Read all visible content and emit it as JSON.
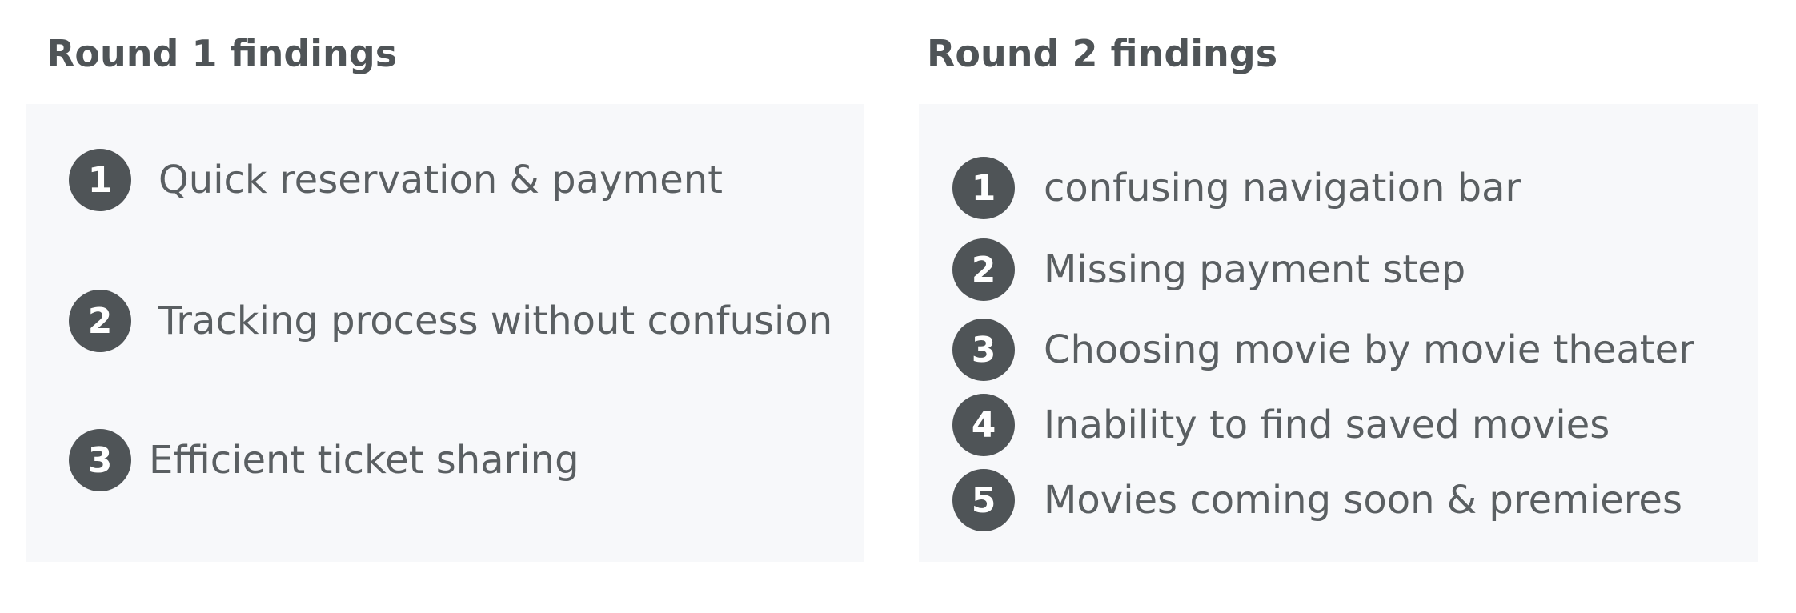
{
  "round1": {
    "title": "Round 1 findings",
    "findings": [
      {
        "number": "1",
        "text": "Quick reservation & payment"
      },
      {
        "number": "2",
        "text": "Tracking process without confusion"
      },
      {
        "number": "3",
        "text": "Efficient ticket sharing"
      }
    ]
  },
  "round2": {
    "title": "Round 2 findings",
    "findings": [
      {
        "number": "1",
        "text": "confusing navigation bar"
      },
      {
        "number": "2",
        "text": "Missing payment step"
      },
      {
        "number": "3",
        "text": "Choosing movie by movie theater"
      },
      {
        "number": "4",
        "text": "Inability to find saved movies"
      },
      {
        "number": "5",
        "text": "Movies coming soon & premieres"
      }
    ]
  },
  "colors": {
    "panel_background": "#f7f8fa",
    "badge_background": "#4f5457",
    "text": "#5a5f62"
  }
}
